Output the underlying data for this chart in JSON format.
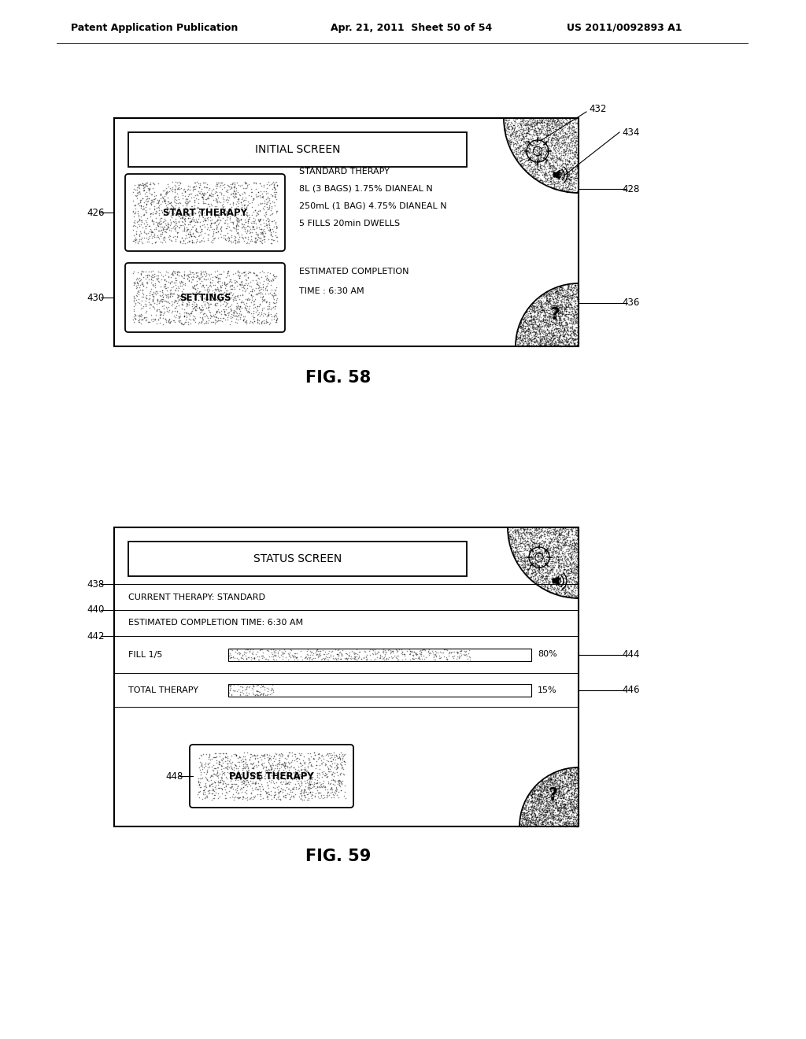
{
  "bg_color": "#ffffff",
  "header_left": "Patent Application Publication",
  "header_mid": "Apr. 21, 2011  Sheet 50 of 54",
  "header_right": "US 2011/0092893 A1",
  "fig58_title": "FIG. 58",
  "fig58_screen_title": "INITIAL SCREEN",
  "fig58_btn1_text": "START THERAPY",
  "fig58_btn2_text": "SETTINGS",
  "fig58_info_lines": [
    "STANDARD THERAPY",
    "8L (3 BAGS) 1.75% DIANEAL N",
    "250mL (1 BAG) 4.75% DIANEAL N",
    "5 FILLS 20min DWELLS"
  ],
  "fig58_completion_lines": [
    "ESTIMATED COMPLETION",
    "TIME : 6:30 AM"
  ],
  "fig59_title": "FIG. 59",
  "fig59_screen_title": "STATUS SCREEN",
  "fig59_line1": "CURRENT THERAPY: STANDARD",
  "fig59_line2": "ESTIMATED COMPLETION TIME: 6:30 AM",
  "fig59_fill_label": "FILL 1/5",
  "fig59_total_label": "TOTAL THERAPY",
  "fig59_fill_pct": "80%",
  "fig59_total_pct": "15%",
  "fig59_fill_progress": 0.8,
  "fig59_total_progress": 0.15,
  "fig59_btn_text": "PAUSE THERAPY"
}
